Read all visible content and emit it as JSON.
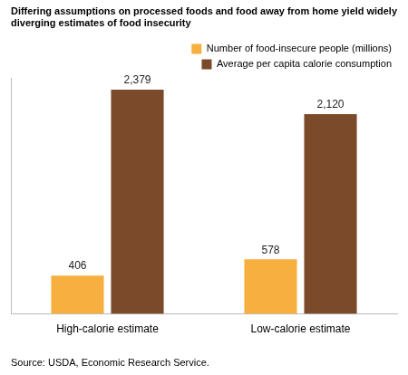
{
  "chart_data": {
    "type": "bar",
    "title": "Differing assumptions on processed foods and food away from home yield widely diverging estimates of food insecurity",
    "source": "Source: USDA, Economic Research Service.",
    "categories": [
      "High-calorie estimate",
      "Low-calorie estimate"
    ],
    "series": [
      {
        "name": "Number of food-insecure people (millions)",
        "color": "#f7b040",
        "values": [
          406,
          578
        ]
      },
      {
        "name": "Average per capita calorie consumption",
        "color": "#7b4a2a",
        "values": [
          2379,
          2120
        ],
        "value_labels": [
          "2,379",
          "2,120"
        ]
      }
    ],
    "ylim": [
      0,
      2500
    ],
    "grid": false,
    "legend": "top-right",
    "data_labels": true,
    "tick_labels": "x"
  }
}
